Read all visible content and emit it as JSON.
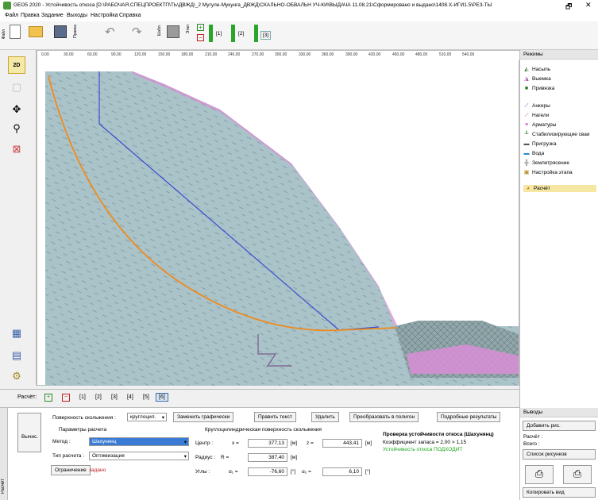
{
  "title": "GEO5 2020 - Устойчивость откоса [D:\\РАБОЧАЯ.СПЕЦПРОЕКТП\\ТЬ\\ДВЖД\\_2 Мугуле-Мукунга_ДВЖД\\СКАЛЬНО-ОБВАЛЬН УЧ-КИ\\ВЫДАЧА 11.08.21\\Сформировано и выдано\\1408.Х-ИГИ1.5\\РЕЗ-ТЫ",
  "window_controls": {
    "restore": "🗗",
    "close": "✕"
  },
  "menu": [
    "Файл",
    "Правка",
    "Задание",
    "Выходы",
    "Настройка",
    "Справка"
  ],
  "toolbar": {
    "side_labels": [
      "Файл",
      "Правка",
      "Шабл.",
      "Этап"
    ],
    "stage_buttons": [
      "[1]",
      "[2]",
      "[3]"
    ]
  },
  "ruler": [
    "0,00",
    "30,00",
    "60,00",
    "90,00",
    "120,00",
    "150,00",
    "180,00",
    "210,00",
    "240,00",
    "270,00",
    "300,00",
    "330,00",
    "360,00",
    "390,00",
    "420,00",
    "450,00",
    "480,00",
    "510,00",
    "540,00"
  ],
  "left_buttons": {
    "view2d": "2D"
  },
  "modes": {
    "header": "Режимы",
    "items": [
      "Насыпь",
      "Выемка",
      "Привязка",
      "Анкеры",
      "Нагели",
      "Арматуры",
      "Стабилизирующие сваи",
      "Пригрузка",
      "Вода",
      "Землетрясение",
      "Настройка этапа",
      "Расчёт"
    ]
  },
  "stagebar": {
    "label": "Расчёт:",
    "stages": [
      "[1]",
      "[2]",
      "[3]",
      "[4]",
      "[5]",
      "[6]"
    ]
  },
  "calc": {
    "side_label": "Расчёт",
    "calc_button": "Вычис.",
    "slip_label": "Поверхность скольжения :",
    "slip_value": "круглоцил.",
    "replace_btn": "Заменить графически",
    "edit_btn": "Править текст",
    "delete_btn": "Удалить",
    "convert_btn": "Преобразовать в полигон",
    "details_btn": "Подробные результаты",
    "params_title": "Параметры расчета",
    "method_label": "Метод :",
    "method_value": "Шахунянц",
    "type_label": "Тип расчета :",
    "type_value": "Оптимизация",
    "limit_btn": "Ограничение",
    "limit_state": "задано",
    "circle_title": "Круглоцилиндрическая поверхность скольжения",
    "center_label": "Центр :",
    "x_label": "x =",
    "x_value": "377,13",
    "z_label": "z =",
    "z_value": "443,41",
    "radius_label": "Радиус :",
    "r_label": "R =",
    "r_value": "387,40",
    "angles_label": "Углы :",
    "a1_label": "α₁ =",
    "a1_value": "-76,60",
    "a2_label": "α₂ =",
    "a2_value": "6,10",
    "unit_m": "[м]",
    "unit_deg": "[°]",
    "result_title": "Проверка устойчивости откоса (Шахунянц)",
    "result_coef": "Коэффициент запаса = 2,00 > 1,15",
    "result_ok": "Устойчивость откоса ПОДХОДИТ"
  },
  "outputs": {
    "header": "Выводы",
    "add_btn": "Добавить рис.",
    "calc_label": "Расчёт :",
    "total_label": "Всего :",
    "list_btn": "Список рисунков",
    "copy_btn": "Копировать вид"
  },
  "colors": {
    "soil": "#a9c3c9",
    "slip": "#f08a1c",
    "line": "#3b4bd0",
    "pink": "#d98ed6",
    "green_ok": "#1aa31a",
    "accent": "#2aa52a"
  }
}
